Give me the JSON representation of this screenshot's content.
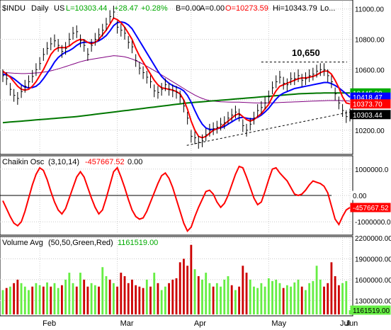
{
  "colors": {
    "price": "#000000",
    "ma_fast": "#ff0000",
    "ma_mid": "#0000ff",
    "ma_long": "#800080",
    "ma_200": "#007700",
    "chaikin": "#ff0000",
    "vol_up": "#66ee44",
    "vol_down": "#cc0000",
    "vol_avg": "#ffffff",
    "grid": "#cccccc",
    "annot": "#000000"
  },
  "header": {
    "symbol": "$INDU",
    "interval": "Daily",
    "exchange": "US",
    "last": "L=10303.44",
    "change": "+28.47",
    "change_pct": "+0.28%",
    "bid": "B=0.00",
    "ask": "A=0.00",
    "open": "O=10273.59",
    "high": "Hi=10343.79",
    "low": "Lo..."
  },
  "annotation": {
    "label": "10,650"
  },
  "chaikin_header": {
    "name": "Chaikin Osc",
    "params": "(3,10,14)",
    "value": "-457667.52",
    "extra": "0.00"
  },
  "volume_header": {
    "name": "Volume Avg",
    "params": "(50,50,Green,Red)",
    "value": "1161519.00"
  },
  "price_badges": [
    {
      "label": "10445.99",
      "value": 10445.99,
      "bg": "#00aa00",
      "fg": "#ffffff"
    },
    {
      "label": "10418.47",
      "value": 10418.47,
      "bg": "#0000ff",
      "fg": "#ffffff"
    },
    {
      "label": "10373.70",
      "value": 10373.7,
      "bg": "#ff0000",
      "fg": "#ffffff"
    },
    {
      "label": "10303.44",
      "value": 10303.44,
      "bg": "#000000",
      "fg": "#ffffff"
    }
  ],
  "chaikin_badges": [
    {
      "label": "0.00",
      "value": 0,
      "bg": "#ffffff",
      "fg": "#000000"
    },
    {
      "label": "-457667.52",
      "value": -457667.52,
      "bg": "#ff0000",
      "fg": "#ffffff"
    }
  ],
  "volume_badges": [
    {
      "label": "1161519.00",
      "value": 1161519,
      "bg": "#66ee44",
      "fg": "#000000"
    }
  ],
  "chart_data": [
    {
      "type": "line",
      "title": "$INDU Daily",
      "ylim": [
        10050,
        11050
      ],
      "y_ticks": [
        10200,
        10400,
        10600,
        10800,
        11000
      ],
      "y_tick_labels": [
        "10200.00",
        "10400.00",
        "10600.00",
        "10800.00",
        "11000.00"
      ],
      "x_tick_labels": [
        "Feb",
        "Mar",
        "Apr",
        "May",
        "Jun",
        "Jul"
      ],
      "grid": true,
      "series": [
        {
          "name": "",
          "role": "price",
          "values": [
            10560,
            10540,
            10470,
            10430,
            10410,
            10455,
            10490,
            10520,
            10555,
            10600,
            10640,
            10700,
            10740,
            10770,
            10790,
            10760,
            10720,
            10740,
            10800,
            10840,
            10850,
            10790,
            10760,
            10700,
            10760,
            10800,
            10830,
            10860,
            10900,
            10950,
            10980,
            10880,
            10860,
            10840,
            10780,
            10750,
            10660,
            10610,
            10580,
            10550,
            10520,
            10460,
            10450,
            10470,
            10500,
            10470,
            10460,
            10450,
            10420,
            10360,
            10280,
            10160,
            10150,
            10120,
            10130,
            10170,
            10200,
            10210,
            10220,
            10240,
            10250,
            10280,
            10300,
            10320,
            10300,
            10230,
            10200,
            10240,
            10280,
            10330,
            10350,
            10380,
            10420,
            10480,
            10520,
            10550,
            10510,
            10500,
            10540,
            10540,
            10560,
            10530,
            10540,
            10560,
            10570,
            10590,
            10600,
            10600,
            10560,
            10520,
            10440,
            10380,
            10330,
            10290,
            10300
          ]
        },
        {
          "name": "",
          "role": "ma_fast",
          "values": [
            10590,
            10570,
            10550,
            10520,
            10490,
            10470,
            10465,
            10470,
            10490,
            10520,
            10560,
            10600,
            10650,
            10700,
            10730,
            10745,
            10745,
            10745,
            10755,
            10775,
            10790,
            10800,
            10795,
            10780,
            10770,
            10780,
            10800,
            10830,
            10860,
            10900,
            10940,
            10930,
            10910,
            10880,
            10840,
            10800,
            10740,
            10690,
            10650,
            10610,
            10570,
            10530,
            10500,
            10480,
            10475,
            10470,
            10465,
            10455,
            10440,
            10400,
            10340,
            10260,
            10200,
            10160,
            10150,
            10160,
            10180,
            10200,
            10210,
            10220,
            10240,
            10260,
            10280,
            10300,
            10310,
            10290,
            10270,
            10260,
            10270,
            10290,
            10310,
            10340,
            10370,
            10420,
            10460,
            10490,
            10500,
            10510,
            10520,
            10530,
            10540,
            10545,
            10545,
            10550,
            10555,
            10565,
            10580,
            10590,
            10590,
            10570,
            10530,
            10480,
            10420,
            10380,
            10374
          ]
        },
        {
          "name": "",
          "role": "ma_mid",
          "values": [
            10570,
            10565,
            10555,
            10540,
            10520,
            10500,
            10485,
            10480,
            10482,
            10490,
            10510,
            10540,
            10575,
            10610,
            10650,
            10680,
            10700,
            10715,
            10725,
            10740,
            10760,
            10775,
            10780,
            10780,
            10778,
            10780,
            10790,
            10805,
            10825,
            10855,
            10890,
            10910,
            10915,
            10910,
            10895,
            10870,
            10830,
            10790,
            10750,
            10710,
            10670,
            10630,
            10590,
            10555,
            10530,
            10510,
            10495,
            10485,
            10475,
            10460,
            10430,
            10385,
            10330,
            10280,
            10240,
            10215,
            10205,
            10205,
            10210,
            10215,
            10225,
            10240,
            10255,
            10270,
            10282,
            10285,
            10280,
            10275,
            10275,
            10285,
            10300,
            10320,
            10345,
            10375,
            10405,
            10430,
            10445,
            10455,
            10465,
            10475,
            10480,
            10485,
            10490,
            10495,
            10500,
            10505,
            10510,
            10515,
            10515,
            10508,
            10495,
            10480,
            10460,
            10440,
            10418
          ]
        },
        {
          "name": "",
          "role": "ma_long",
          "values": [
            10580,
            10580,
            10578,
            10576,
            10575,
            10574,
            10574,
            10575,
            10576,
            10578,
            10580,
            10583,
            10587,
            10592,
            10598,
            10605,
            10612,
            10620,
            10628,
            10636,
            10644,
            10652,
            10658,
            10664,
            10668,
            10672,
            10676,
            10680,
            10684,
            10688,
            10692,
            10690,
            10688,
            10684,
            10678,
            10670,
            10660,
            10648,
            10636,
            10622,
            10608,
            10594,
            10580,
            10565,
            10550,
            10535,
            10520,
            10505,
            10490,
            10475,
            10460,
            10446,
            10432,
            10420,
            10410,
            10402,
            10396,
            10392,
            10390,
            10388,
            10387,
            10386,
            10385,
            10385,
            10385,
            10384,
            10383,
            10382,
            10381,
            10380,
            10380,
            10380,
            10380,
            10381,
            10382,
            10383,
            10384,
            10385,
            10386,
            10387,
            10388,
            10389,
            10390,
            10391,
            10392,
            10393,
            10394,
            10395,
            10396,
            10396,
            10396,
            10396,
            10395,
            10394,
            10392
          ]
        },
        {
          "name": "",
          "role": "ma_200",
          "values": [
            10250,
            10252,
            10254,
            10256,
            10258,
            10260,
            10262,
            10264,
            10266,
            10268,
            10270,
            10272,
            10274,
            10276,
            10278,
            10280,
            10282,
            10284,
            10286,
            10288,
            10290,
            10293,
            10296,
            10299,
            10302,
            10305,
            10308,
            10311,
            10314,
            10317,
            10320,
            10323,
            10326,
            10329,
            10332,
            10335,
            10338,
            10341,
            10344,
            10347,
            10350,
            10353,
            10356,
            10359,
            10362,
            10365,
            10368,
            10371,
            10374,
            10377,
            10380,
            10382,
            10384,
            10386,
            10388,
            10390,
            10392,
            10394,
            10396,
            10398,
            10400,
            10402,
            10404,
            10406,
            10408,
            10410,
            10412,
            10414,
            10416,
            10418,
            10420,
            10422,
            10424,
            10426,
            10428,
            10430,
            10432,
            10434,
            10436,
            10438,
            10440,
            10441,
            10442,
            10443,
            10444,
            10445,
            10445,
            10446,
            10446,
            10446,
            10446,
            10446,
            10446,
            10446,
            10446
          ]
        }
      ],
      "annotations": [
        {
          "type": "hline",
          "label": "10,650",
          "y": 10650
        },
        {
          "type": "trendline",
          "from": [
            0.53,
            10100
          ],
          "to": [
            1.0,
            10320
          ]
        }
      ]
    },
    {
      "type": "line",
      "title": "Chaikin Osc (3,10,14)",
      "ylim": [
        -1450000,
        1450000
      ],
      "y_ticks": [
        1000000,
        0,
        -1000000
      ],
      "y_tick_labels": [
        "1000000.0",
        "0.00",
        "-1000000.0"
      ],
      "grid": true,
      "series": [
        {
          "name": "Chaikin Osc",
          "values": [
            -200000,
            -500000,
            -800000,
            -1050000,
            -1150000,
            -1000000,
            -600000,
            -100000,
            400000,
            800000,
            1050000,
            950000,
            600000,
            150000,
            -250000,
            -550000,
            -700000,
            -500000,
            -100000,
            300000,
            700000,
            900000,
            700000,
            300000,
            -100000,
            -450000,
            -700000,
            -550000,
            -100000,
            400000,
            900000,
            1050000,
            700000,
            300000,
            -150000,
            -550000,
            -800000,
            -900000,
            -850000,
            -600000,
            -250000,
            100000,
            450000,
            750000,
            850000,
            650000,
            300000,
            -150000,
            -600000,
            -1050000,
            -1350000,
            -1200000,
            -800000,
            -450000,
            -150000,
            150000,
            200000,
            50000,
            -250000,
            -450000,
            -300000,
            0,
            400000,
            800000,
            1100000,
            1050000,
            700000,
            300000,
            -100000,
            -350000,
            -250000,
            150000,
            600000,
            1000000,
            1050000,
            850000,
            700000,
            550000,
            300000,
            50000,
            0,
            50000,
            200000,
            400000,
            550000,
            500000,
            450000,
            350000,
            100000,
            -400000,
            -900000,
            -1100000,
            -800000,
            -550000,
            -457667
          ]
        }
      ]
    },
    {
      "type": "bar",
      "title": "Volume Avg (50,50,Green,Red)",
      "ylim": [
        1100000,
        2200000
      ],
      "y_ticks": [
        1300000,
        1600000,
        1900000,
        2200000
      ],
      "y_tick_labels": [
        "1300000.00",
        "1600000.00",
        "1900000.00",
        "2200000.00"
      ],
      "grid": true,
      "values": [
        1450000,
        1480000,
        1500000,
        1550000,
        1600000,
        1550000,
        1500000,
        1450000,
        1500000,
        1550000,
        1520000,
        1500000,
        1560000,
        1500000,
        1550000,
        1480000,
        1520000,
        1600000,
        1700000,
        1550000,
        1500000,
        1700000,
        1600000,
        1500000,
        1550000,
        1520000,
        1500000,
        1780000,
        1650000,
        1600000,
        1550000,
        1500000,
        1700000,
        1650000,
        1550000,
        1600000,
        1520000,
        1500000,
        1480000,
        1600000,
        1500000,
        1700000,
        1550000,
        1450000,
        1500000,
        1550000,
        1600000,
        1620000,
        1850000,
        1900000,
        1800000,
        2100000,
        1750000,
        1650000,
        1600000,
        1700000,
        1550000,
        1500000,
        1550000,
        1500000,
        1600000,
        1650000,
        1520000,
        1450000,
        1500000,
        1800000,
        1700000,
        1600000,
        1500000,
        1480000,
        1550000,
        1500000,
        1620000,
        1580000,
        1600000,
        1550000,
        1480000,
        1520000,
        1500000,
        1560000,
        1600000,
        1500000,
        1450000,
        1550000,
        1580000,
        1800000,
        1600000,
        1500000,
        1550000,
        1850000,
        1650000,
        1520000,
        1550000,
        1580000,
        1161519
      ],
      "up": [
        1,
        0,
        1,
        0,
        0,
        1,
        1,
        1,
        0,
        1,
        1,
        0,
        1,
        0,
        1,
        1,
        0,
        1,
        1,
        1,
        0,
        1,
        0,
        0,
        1,
        1,
        0,
        1,
        1,
        0,
        1,
        0,
        0,
        0,
        0,
        0,
        0,
        0,
        0,
        1,
        0,
        1,
        0,
        1,
        1,
        0,
        0,
        0,
        0,
        0,
        0,
        0,
        1,
        0,
        1,
        1,
        1,
        0,
        1,
        1,
        1,
        1,
        0,
        1,
        0,
        0,
        0,
        1,
        1,
        1,
        1,
        1,
        1,
        1,
        1,
        1,
        0,
        1,
        1,
        1,
        1,
        0,
        1,
        1,
        1,
        1,
        1,
        0,
        0,
        0,
        0,
        0,
        1,
        1,
        1
      ]
    }
  ]
}
